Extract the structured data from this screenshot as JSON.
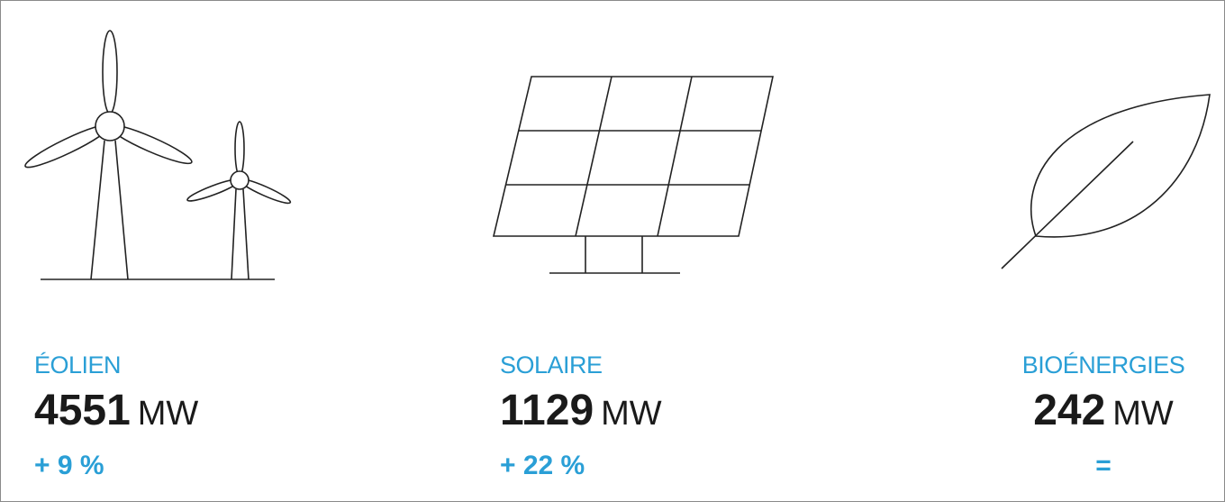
{
  "items": [
    {
      "label": "ÉOLIEN",
      "value": 4551,
      "unit": "MW",
      "change": "+ 9 %"
    },
    {
      "label": "SOLAIRE",
      "value": 1129,
      "unit": "MW",
      "change": "+ 22 %"
    },
    {
      "label": "BIOÉNERGIES",
      "value": 242,
      "unit": "MW",
      "change": "="
    }
  ]
}
